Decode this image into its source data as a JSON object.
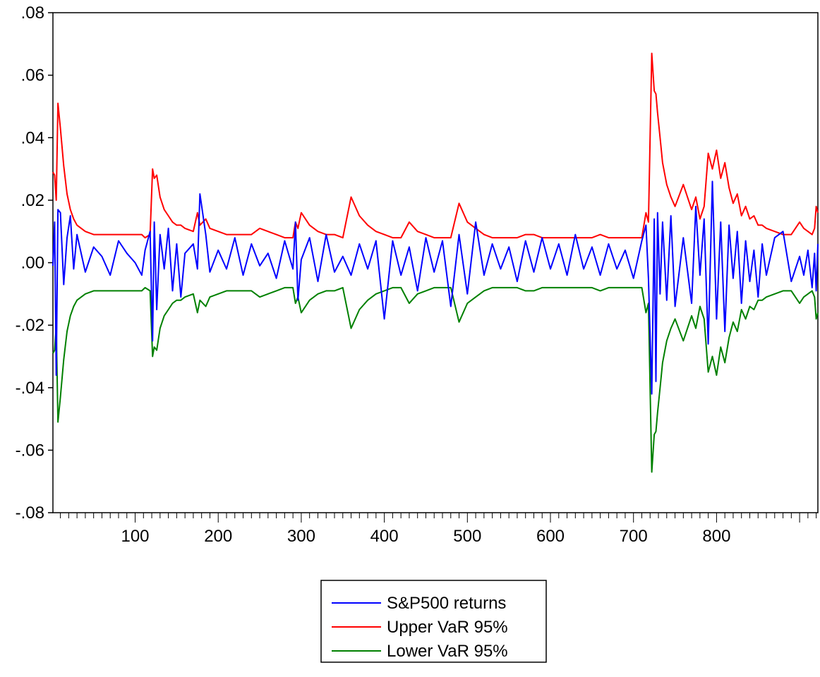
{
  "chart_data": {
    "type": "line",
    "title": "",
    "xlabel": "",
    "ylabel": "",
    "xlim": [
      1,
      922
    ],
    "ylim": [
      -0.08,
      0.08
    ],
    "grid": false,
    "legend_position": "bottom",
    "x_tick_labels": [
      "100",
      "200",
      "300",
      "400",
      "500",
      "600",
      "700",
      "800"
    ],
    "x_ticks": [
      100,
      200,
      300,
      400,
      500,
      600,
      700,
      800
    ],
    "y_tick_labels": [
      ".08",
      ".06",
      ".04",
      ".02",
      ".00",
      "-.02",
      "-.04",
      "-.06",
      "-.08"
    ],
    "y_ticks": [
      0.08,
      0.06,
      0.04,
      0.02,
      0.0,
      -0.02,
      -0.04,
      -0.06,
      -0.08
    ],
    "x": [
      1,
      3,
      5,
      7,
      10,
      14,
      18,
      22,
      26,
      30,
      40,
      50,
      60,
      70,
      80,
      90,
      100,
      108,
      112,
      118,
      121,
      123,
      126,
      130,
      135,
      140,
      145,
      150,
      155,
      160,
      170,
      175,
      178,
      185,
      190,
      200,
      210,
      220,
      230,
      240,
      250,
      260,
      270,
      280,
      290,
      293,
      296,
      300,
      310,
      320,
      330,
      340,
      350,
      360,
      370,
      380,
      390,
      400,
      410,
      420,
      430,
      440,
      450,
      460,
      470,
      480,
      490,
      500,
      510,
      520,
      530,
      540,
      550,
      560,
      570,
      580,
      590,
      600,
      610,
      620,
      630,
      640,
      650,
      660,
      670,
      680,
      690,
      700,
      710,
      715,
      718,
      722,
      725,
      727,
      729,
      732,
      735,
      740,
      745,
      750,
      760,
      770,
      775,
      780,
      785,
      790,
      795,
      800,
      805,
      810,
      815,
      820,
      825,
      830,
      835,
      840,
      845,
      850,
      855,
      860,
      870,
      880,
      890,
      900,
      905,
      910,
      915,
      918,
      920,
      922
    ],
    "series": [
      {
        "name": "S&P500 returns",
        "color": "#0000ff",
        "values": [
          -0.001,
          0.013,
          -0.036,
          0.017,
          0.016,
          -0.007,
          0.008,
          0.015,
          -0.002,
          0.009,
          -0.003,
          0.005,
          0.002,
          -0.004,
          0.007,
          0.003,
          0.0,
          -0.004,
          0.004,
          0.01,
          -0.025,
          0.013,
          -0.015,
          0.009,
          -0.002,
          0.011,
          -0.009,
          0.006,
          -0.011,
          0.003,
          0.006,
          -0.002,
          0.022,
          0.009,
          -0.003,
          0.004,
          -0.002,
          0.008,
          -0.004,
          0.006,
          -0.001,
          0.003,
          -0.005,
          0.007,
          -0.002,
          0.013,
          -0.012,
          0.001,
          0.008,
          -0.006,
          0.009,
          -0.003,
          0.002,
          -0.004,
          0.006,
          -0.002,
          0.007,
          -0.018,
          0.007,
          -0.004,
          0.005,
          -0.009,
          0.008,
          -0.003,
          0.007,
          -0.014,
          0.009,
          -0.01,
          0.013,
          -0.004,
          0.006,
          -0.002,
          0.005,
          -0.006,
          0.007,
          -0.003,
          0.008,
          -0.002,
          0.006,
          -0.004,
          0.009,
          -0.002,
          0.005,
          -0.004,
          0.006,
          -0.002,
          0.004,
          -0.005,
          0.007,
          0.012,
          -0.005,
          -0.042,
          0.014,
          -0.038,
          0.016,
          -0.01,
          0.013,
          -0.012,
          0.015,
          -0.014,
          0.008,
          -0.013,
          0.018,
          -0.004,
          0.014,
          -0.026,
          0.026,
          -0.018,
          0.013,
          -0.022,
          0.012,
          -0.005,
          0.01,
          -0.013,
          0.007,
          -0.006,
          0.004,
          -0.011,
          0.006,
          -0.004,
          0.008,
          0.01,
          -0.006,
          0.002,
          -0.004,
          0.004,
          -0.008,
          0.003,
          -0.009,
          0.006
        ]
      },
      {
        "name": "Upper VaR 95%",
        "color": "#ff0000",
        "values": [
          0.029,
          0.028,
          0.02,
          0.051,
          0.043,
          0.031,
          0.022,
          0.017,
          0.014,
          0.012,
          0.01,
          0.009,
          0.009,
          0.009,
          0.009,
          0.009,
          0.009,
          0.009,
          0.008,
          0.009,
          0.03,
          0.027,
          0.028,
          0.021,
          0.017,
          0.015,
          0.013,
          0.012,
          0.012,
          0.011,
          0.01,
          0.016,
          0.012,
          0.014,
          0.011,
          0.01,
          0.009,
          0.009,
          0.009,
          0.009,
          0.011,
          0.01,
          0.009,
          0.008,
          0.008,
          0.013,
          0.011,
          0.016,
          0.012,
          0.01,
          0.009,
          0.009,
          0.008,
          0.021,
          0.015,
          0.012,
          0.01,
          0.009,
          0.008,
          0.008,
          0.013,
          0.01,
          0.009,
          0.008,
          0.008,
          0.008,
          0.019,
          0.013,
          0.011,
          0.009,
          0.008,
          0.008,
          0.008,
          0.008,
          0.009,
          0.009,
          0.008,
          0.008,
          0.008,
          0.008,
          0.008,
          0.008,
          0.008,
          0.009,
          0.008,
          0.008,
          0.008,
          0.008,
          0.008,
          0.016,
          0.013,
          0.067,
          0.055,
          0.054,
          0.048,
          0.04,
          0.032,
          0.025,
          0.021,
          0.018,
          0.025,
          0.017,
          0.021,
          0.014,
          0.018,
          0.035,
          0.03,
          0.036,
          0.027,
          0.032,
          0.024,
          0.019,
          0.022,
          0.015,
          0.018,
          0.014,
          0.015,
          0.012,
          0.012,
          0.011,
          0.01,
          0.009,
          0.009,
          0.013,
          0.011,
          0.01,
          0.009,
          0.011,
          0.018,
          0.016
        ]
      },
      {
        "name": "Lower VaR 95%",
        "color": "#008000",
        "values": [
          -0.029,
          -0.028,
          -0.02,
          -0.051,
          -0.043,
          -0.031,
          -0.022,
          -0.017,
          -0.014,
          -0.012,
          -0.01,
          -0.009,
          -0.009,
          -0.009,
          -0.009,
          -0.009,
          -0.009,
          -0.009,
          -0.008,
          -0.009,
          -0.03,
          -0.027,
          -0.028,
          -0.021,
          -0.017,
          -0.015,
          -0.013,
          -0.012,
          -0.012,
          -0.011,
          -0.01,
          -0.016,
          -0.012,
          -0.014,
          -0.011,
          -0.01,
          -0.009,
          -0.009,
          -0.009,
          -0.009,
          -0.011,
          -0.01,
          -0.009,
          -0.008,
          -0.008,
          -0.013,
          -0.011,
          -0.016,
          -0.012,
          -0.01,
          -0.009,
          -0.009,
          -0.008,
          -0.021,
          -0.015,
          -0.012,
          -0.01,
          -0.009,
          -0.008,
          -0.008,
          -0.013,
          -0.01,
          -0.009,
          -0.008,
          -0.008,
          -0.008,
          -0.019,
          -0.013,
          -0.011,
          -0.009,
          -0.008,
          -0.008,
          -0.008,
          -0.008,
          -0.009,
          -0.009,
          -0.008,
          -0.008,
          -0.008,
          -0.008,
          -0.008,
          -0.008,
          -0.008,
          -0.009,
          -0.008,
          -0.008,
          -0.008,
          -0.008,
          -0.008,
          -0.016,
          -0.013,
          -0.067,
          -0.055,
          -0.054,
          -0.048,
          -0.04,
          -0.032,
          -0.025,
          -0.021,
          -0.018,
          -0.025,
          -0.017,
          -0.021,
          -0.014,
          -0.018,
          -0.035,
          -0.03,
          -0.036,
          -0.027,
          -0.032,
          -0.024,
          -0.019,
          -0.022,
          -0.015,
          -0.018,
          -0.014,
          -0.015,
          -0.012,
          -0.012,
          -0.011,
          -0.01,
          -0.009,
          -0.009,
          -0.013,
          -0.011,
          -0.01,
          -0.009,
          -0.011,
          -0.018,
          -0.016
        ]
      }
    ]
  }
}
